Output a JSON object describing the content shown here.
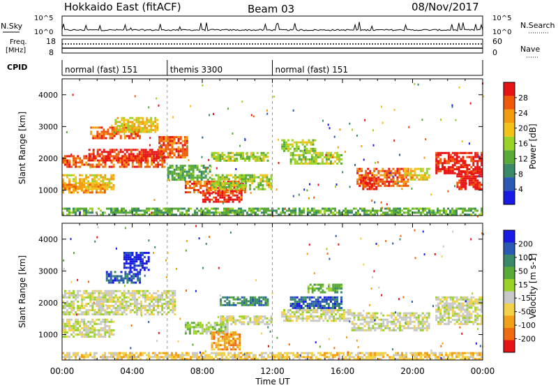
{
  "header": {
    "station": "Hokkaido East (fitACF)",
    "beam": "Beam 03",
    "date": "08/Nov/2017"
  },
  "top_panels": {
    "nsky_label": "N.Sky",
    "nsky_ticks": [
      "10^5",
      "10^0"
    ],
    "nsearch_label": "N.Search",
    "freq_label_line1": "Freq.",
    "freq_label_line2": "[MHz]",
    "freq_ticks": [
      "18",
      "8"
    ],
    "nave_ticks": [
      "60",
      "0"
    ],
    "nave_label": "Nave",
    "cpid_label": "CPID"
  },
  "cpid_segments": [
    {
      "label": "normal (fast) 151",
      "start_hour": 0,
      "end_hour": 6
    },
    {
      "label": "themis 3300",
      "start_hour": 6,
      "end_hour": 12
    },
    {
      "label": "normal (fast) 151",
      "start_hour": 12,
      "end_hour": 24
    }
  ],
  "colors": {
    "power": [
      "#1a1ae6",
      "#2a5ab4",
      "#3a8a6a",
      "#5aaa3a",
      "#9ad228",
      "#f2c218",
      "#f29a10",
      "#ef5a0a",
      "#e61414"
    ],
    "velocity": [
      "#e61414",
      "#f06a10",
      "#f2a018",
      "#f2d24a",
      "#c8c8c8",
      "#9ad228",
      "#5aaa3a",
      "#3a8a6a",
      "#2a5ab4",
      "#1a1ae6"
    ]
  },
  "chart_data": [
    {
      "type": "heatmap",
      "name": "power",
      "ylabel": "Slant Range [km]",
      "xlim": [
        0,
        24
      ],
      "ylim": [
        200,
        4500
      ],
      "yticks": [
        "4000",
        "3000",
        "2000",
        "1000"
      ],
      "colorbar_label": "Power [dB]",
      "colorbar_ticks": [
        "28",
        "24",
        "20",
        "16",
        "12",
        "8",
        "4"
      ],
      "clim": [
        0,
        32
      ],
      "blobs": [
        {
          "t": [
            0.0,
            5.9
          ],
          "r": [
            1700,
            2100
          ],
          "level": 7
        },
        {
          "t": [
            1.5,
            5.8
          ],
          "r": [
            1900,
            2300
          ],
          "level": 8
        },
        {
          "t": [
            0.0,
            3.0
          ],
          "r": [
            1000,
            1500
          ],
          "level": 5
        },
        {
          "t": [
            0.0,
            2.5
          ],
          "r": [
            900,
            1200
          ],
          "level": 6
        },
        {
          "t": [
            1.6,
            4.5
          ],
          "r": [
            2600,
            3000
          ],
          "level": 7
        },
        {
          "t": [
            3.0,
            5.5
          ],
          "r": [
            2800,
            3300
          ],
          "level": 5
        },
        {
          "t": [
            5.5,
            7.2
          ],
          "r": [
            2000,
            2700
          ],
          "level": 7
        },
        {
          "t": [
            6.0,
            8.5
          ],
          "r": [
            1300,
            1800
          ],
          "level": 3
        },
        {
          "t": [
            7.0,
            10.5
          ],
          "r": [
            900,
            1300
          ],
          "level": 7
        },
        {
          "t": [
            8.0,
            10.3
          ],
          "r": [
            600,
            1000
          ],
          "level": 8
        },
        {
          "t": [
            8.5,
            12.0
          ],
          "r": [
            1000,
            1500
          ],
          "level": 4
        },
        {
          "t": [
            8.5,
            11.8
          ],
          "r": [
            1900,
            2200
          ],
          "level": 4
        },
        {
          "t": [
            12.5,
            14.5
          ],
          "r": [
            2200,
            2600
          ],
          "level": 4
        },
        {
          "t": [
            13.0,
            16.0
          ],
          "r": [
            1800,
            2200
          ],
          "level": 4
        },
        {
          "t": [
            16.8,
            19.8
          ],
          "r": [
            1100,
            1700
          ],
          "level": 7
        },
        {
          "t": [
            17.0,
            18.0
          ],
          "r": [
            1000,
            1400
          ],
          "level": 8
        },
        {
          "t": [
            19.5,
            21.0
          ],
          "r": [
            1300,
            1700
          ],
          "level": 5
        },
        {
          "t": [
            21.3,
            24.0
          ],
          "r": [
            1500,
            2200
          ],
          "level": 8
        },
        {
          "t": [
            22.5,
            24.0
          ],
          "r": [
            1000,
            1600
          ],
          "level": 8
        },
        {
          "t": [
            0.0,
            24.0
          ],
          "r": [
            200,
            450
          ],
          "level": 3
        }
      ]
    },
    {
      "type": "heatmap",
      "name": "velocity",
      "ylabel": "Slant Range [km]",
      "xlabel": "Time UT",
      "xlim": [
        0,
        24
      ],
      "ylim": [
        200,
        4500
      ],
      "yticks": [
        "4000",
        "3000",
        "2000",
        "1000"
      ],
      "xticks": [
        "00:00",
        "04:00",
        "08:00",
        "12:00",
        "16:00",
        "20:00",
        "00:00"
      ],
      "colorbar_label": "Velocity [m s-1]",
      "colorbar_ticks": [
        "200",
        "100",
        "50",
        "15",
        "-15",
        "-50",
        "-100",
        "-200"
      ],
      "clim": [
        -250,
        250
      ],
      "blobs": [
        {
          "t": [
            0.0,
            6.5
          ],
          "r": [
            1600,
            2400
          ],
          "level": 4
        },
        {
          "t": [
            0.0,
            3.0
          ],
          "r": [
            900,
            1500
          ],
          "level": 4
        },
        {
          "t": [
            2.5,
            4.5
          ],
          "r": [
            2600,
            3000
          ],
          "level": 8
        },
        {
          "t": [
            3.5,
            5.0
          ],
          "r": [
            3000,
            3600
          ],
          "level": 9
        },
        {
          "t": [
            7.0,
            9.5
          ],
          "r": [
            1000,
            1400
          ],
          "level": 5
        },
        {
          "t": [
            8.5,
            10.2
          ],
          "r": [
            500,
            1100
          ],
          "level": 2
        },
        {
          "t": [
            9.0,
            12.0
          ],
          "r": [
            1300,
            1600
          ],
          "level": 4
        },
        {
          "t": [
            9.0,
            11.8
          ],
          "r": [
            1900,
            2200
          ],
          "level": 7
        },
        {
          "t": [
            13.0,
            16.0
          ],
          "r": [
            1800,
            2200
          ],
          "level": 8
        },
        {
          "t": [
            14.0,
            16.0
          ],
          "r": [
            2300,
            2600
          ],
          "level": 6
        },
        {
          "t": [
            12.5,
            16.5
          ],
          "r": [
            1400,
            1800
          ],
          "level": 4
        },
        {
          "t": [
            16.5,
            21.0
          ],
          "r": [
            1100,
            1700
          ],
          "level": 4
        },
        {
          "t": [
            21.3,
            24.0
          ],
          "r": [
            1300,
            2200
          ],
          "level": 4
        },
        {
          "t": [
            0.0,
            24.0
          ],
          "r": [
            200,
            450
          ],
          "level": 3
        }
      ]
    }
  ]
}
